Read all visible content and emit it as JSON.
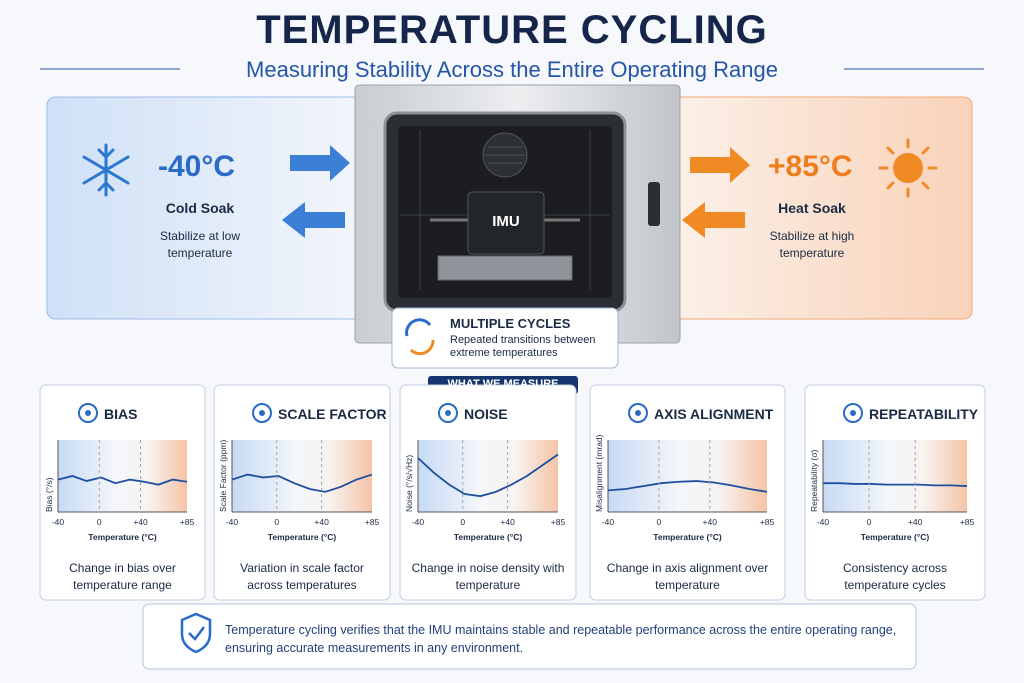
{
  "header": {
    "title": "TEMPERATURE CYCLING",
    "subtitle": "Measuring Stability Across the Entire Operating Range"
  },
  "cold": {
    "temperature": "-40°C",
    "label": "Cold Soak",
    "description": "Stabilize at low temperature"
  },
  "heat": {
    "temperature": "+85°C",
    "label": "Heat Soak",
    "description": "Stabilize at high temperature"
  },
  "chamber": {
    "device": "IMU"
  },
  "cycles": {
    "title": "MULTIPLE CYCLES",
    "description": "Repeated transitions between extreme temperatures"
  },
  "measure": {
    "heading": "WHAT WE MEASURE",
    "x_ticks": [
      "-40",
      "0",
      "+40",
      "+85"
    ],
    "x_label": "Temperature (°C)",
    "metrics": [
      {
        "title": "BIAS",
        "y_label": "Bias (°/s)",
        "description": "Change in bias over temperature range"
      },
      {
        "title": "SCALE FACTOR",
        "y_label": "Scale Factor (ppm)",
        "description": "Variation in scale factor across temperatures"
      },
      {
        "title": "NOISE",
        "y_label": "Noise (°/s/√Hz)",
        "description": "Change in noise density with temperature"
      },
      {
        "title": "AXIS ALIGNMENT",
        "y_label": "Misalignment (mrad)",
        "description": "Change in axis alignment over temperature"
      },
      {
        "title": "REPEATABILITY",
        "y_label": "Repeatability (σ)",
        "description": "Consistency across temperature cycles"
      }
    ]
  },
  "footer": {
    "text": "Temperature cycling verifies that the IMU maintains stable and repeatable performance across the entire operating range, ensuring accurate measurements in any environment."
  }
}
